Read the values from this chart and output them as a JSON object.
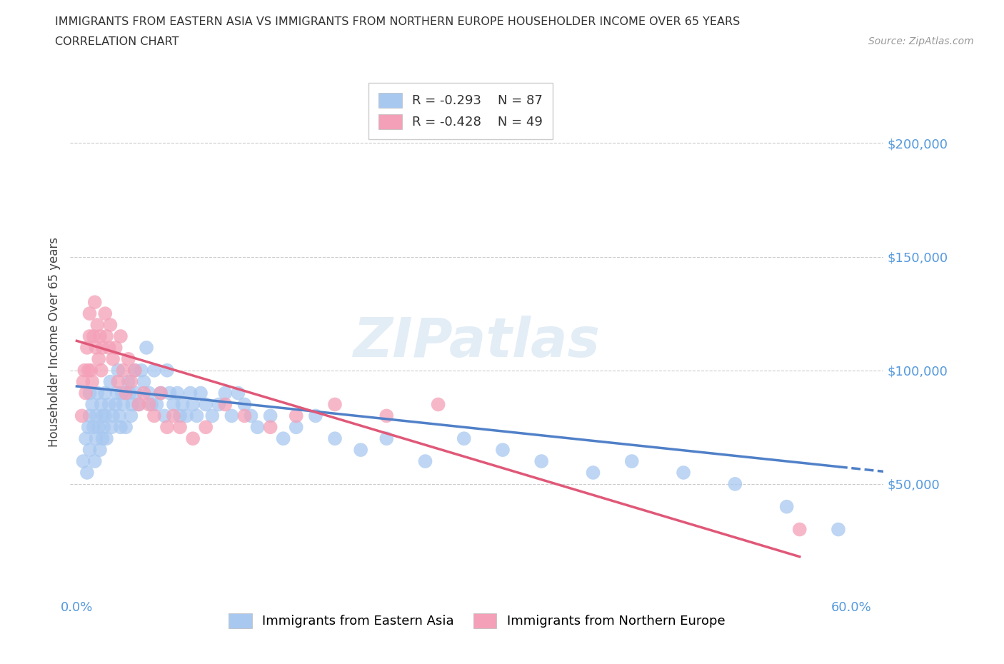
{
  "title_line1": "IMMIGRANTS FROM EASTERN ASIA VS IMMIGRANTS FROM NORTHERN EUROPE HOUSEHOLDER INCOME OVER 65 YEARS",
  "title_line2": "CORRELATION CHART",
  "source_text": "Source: ZipAtlas.com",
  "ylabel": "Householder Income Over 65 years",
  "xlim": [
    -0.005,
    0.625
  ],
  "ylim": [
    0,
    225000
  ],
  "ytick_vals": [
    50000,
    100000,
    150000,
    200000
  ],
  "ytick_labels": [
    "$50,000",
    "$100,000",
    "$150,000",
    "$200,000"
  ],
  "xtick_vals": [
    0.0,
    0.1,
    0.2,
    0.3,
    0.4,
    0.5,
    0.6
  ],
  "xtick_labels": [
    "0.0%",
    "",
    "",
    "",
    "",
    "",
    "60.0%"
  ],
  "legend_r1": "R = -0.293",
  "legend_n1": "N = 87",
  "legend_r2": "R = -0.428",
  "legend_n2": "N = 49",
  "color_blue": "#A8C8F0",
  "color_pink": "#F4A0B8",
  "line_color_blue": "#5080C8",
  "line_color_pink": "#E05878",
  "watermark": "ZIPatlas",
  "background_color": "#ffffff",
  "blue_scatter_x": [
    0.005,
    0.007,
    0.008,
    0.009,
    0.01,
    0.01,
    0.01,
    0.012,
    0.013,
    0.014,
    0.015,
    0.015,
    0.016,
    0.017,
    0.018,
    0.019,
    0.02,
    0.02,
    0.021,
    0.022,
    0.022,
    0.023,
    0.025,
    0.026,
    0.027,
    0.028,
    0.03,
    0.031,
    0.032,
    0.033,
    0.034,
    0.035,
    0.036,
    0.038,
    0.04,
    0.041,
    0.042,
    0.043,
    0.045,
    0.046,
    0.048,
    0.05,
    0.052,
    0.054,
    0.056,
    0.058,
    0.06,
    0.062,
    0.065,
    0.068,
    0.07,
    0.072,
    0.075,
    0.078,
    0.08,
    0.082,
    0.085,
    0.088,
    0.09,
    0.093,
    0.096,
    0.1,
    0.105,
    0.11,
    0.115,
    0.12,
    0.125,
    0.13,
    0.135,
    0.14,
    0.15,
    0.16,
    0.17,
    0.185,
    0.2,
    0.22,
    0.24,
    0.27,
    0.3,
    0.33,
    0.36,
    0.4,
    0.43,
    0.47,
    0.51,
    0.55,
    0.59
  ],
  "blue_scatter_y": [
    60000,
    70000,
    55000,
    75000,
    65000,
    80000,
    90000,
    85000,
    75000,
    60000,
    70000,
    80000,
    90000,
    75000,
    65000,
    85000,
    70000,
    80000,
    75000,
    90000,
    80000,
    70000,
    85000,
    95000,
    75000,
    80000,
    85000,
    90000,
    100000,
    80000,
    75000,
    90000,
    85000,
    75000,
    95000,
    90000,
    80000,
    85000,
    100000,
    90000,
    85000,
    100000,
    95000,
    110000,
    90000,
    85000,
    100000,
    85000,
    90000,
    80000,
    100000,
    90000,
    85000,
    90000,
    80000,
    85000,
    80000,
    90000,
    85000,
    80000,
    90000,
    85000,
    80000,
    85000,
    90000,
    80000,
    90000,
    85000,
    80000,
    75000,
    80000,
    70000,
    75000,
    80000,
    70000,
    65000,
    70000,
    60000,
    70000,
    65000,
    60000,
    55000,
    60000,
    55000,
    50000,
    40000,
    30000
  ],
  "pink_scatter_x": [
    0.004,
    0.005,
    0.006,
    0.007,
    0.008,
    0.009,
    0.01,
    0.01,
    0.011,
    0.012,
    0.013,
    0.014,
    0.015,
    0.016,
    0.017,
    0.018,
    0.019,
    0.02,
    0.022,
    0.023,
    0.025,
    0.026,
    0.028,
    0.03,
    0.032,
    0.034,
    0.036,
    0.038,
    0.04,
    0.042,
    0.045,
    0.048,
    0.052,
    0.056,
    0.06,
    0.065,
    0.07,
    0.075,
    0.08,
    0.09,
    0.1,
    0.115,
    0.13,
    0.15,
    0.17,
    0.2,
    0.24,
    0.28,
    0.56
  ],
  "pink_scatter_y": [
    80000,
    95000,
    100000,
    90000,
    110000,
    100000,
    115000,
    125000,
    100000,
    95000,
    115000,
    130000,
    110000,
    120000,
    105000,
    115000,
    100000,
    110000,
    125000,
    115000,
    110000,
    120000,
    105000,
    110000,
    95000,
    115000,
    100000,
    90000,
    105000,
    95000,
    100000,
    85000,
    90000,
    85000,
    80000,
    90000,
    75000,
    80000,
    75000,
    70000,
    75000,
    85000,
    80000,
    75000,
    80000,
    85000,
    80000,
    85000,
    30000
  ],
  "blue_line_x0": 0.0,
  "blue_line_y0": 93000,
  "blue_line_x1": 0.6,
  "blue_line_y1": 57000,
  "blue_line_solid_end": 0.59,
  "pink_line_x0": 0.0,
  "pink_line_y0": 113000,
  "pink_line_x1": 0.56,
  "pink_line_y1": 18000
}
